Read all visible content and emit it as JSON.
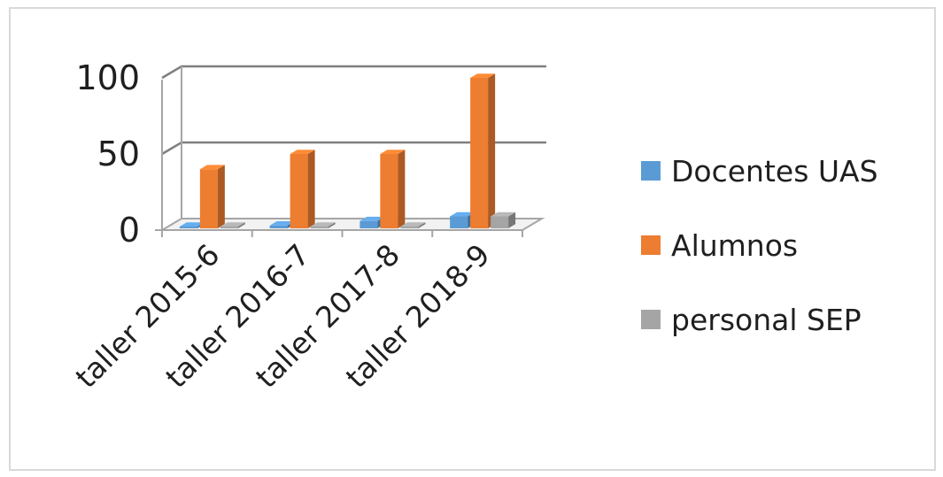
{
  "chart_data": {
    "type": "bar",
    "style": "3d-clustered-column",
    "categories": [
      "taller 2015-6",
      "taller 2016-7",
      "taller 2017-8",
      "taller 2018-9"
    ],
    "series": [
      {
        "name": "Docentes UAS",
        "values": [
          2,
          3,
          6,
          9
        ],
        "color": "#5b9bd5"
      },
      {
        "name": "Alumnos",
        "values": [
          40,
          50,
          50,
          100
        ],
        "color": "#ed7d31"
      },
      {
        "name": "personal SEP",
        "values": [
          1,
          1,
          2,
          9
        ],
        "color": "#a5a5a5"
      }
    ],
    "y_ticks": [
      "0",
      "50",
      "100"
    ],
    "ylim": [
      0,
      100
    ],
    "grid": true,
    "legend_position": "right"
  }
}
